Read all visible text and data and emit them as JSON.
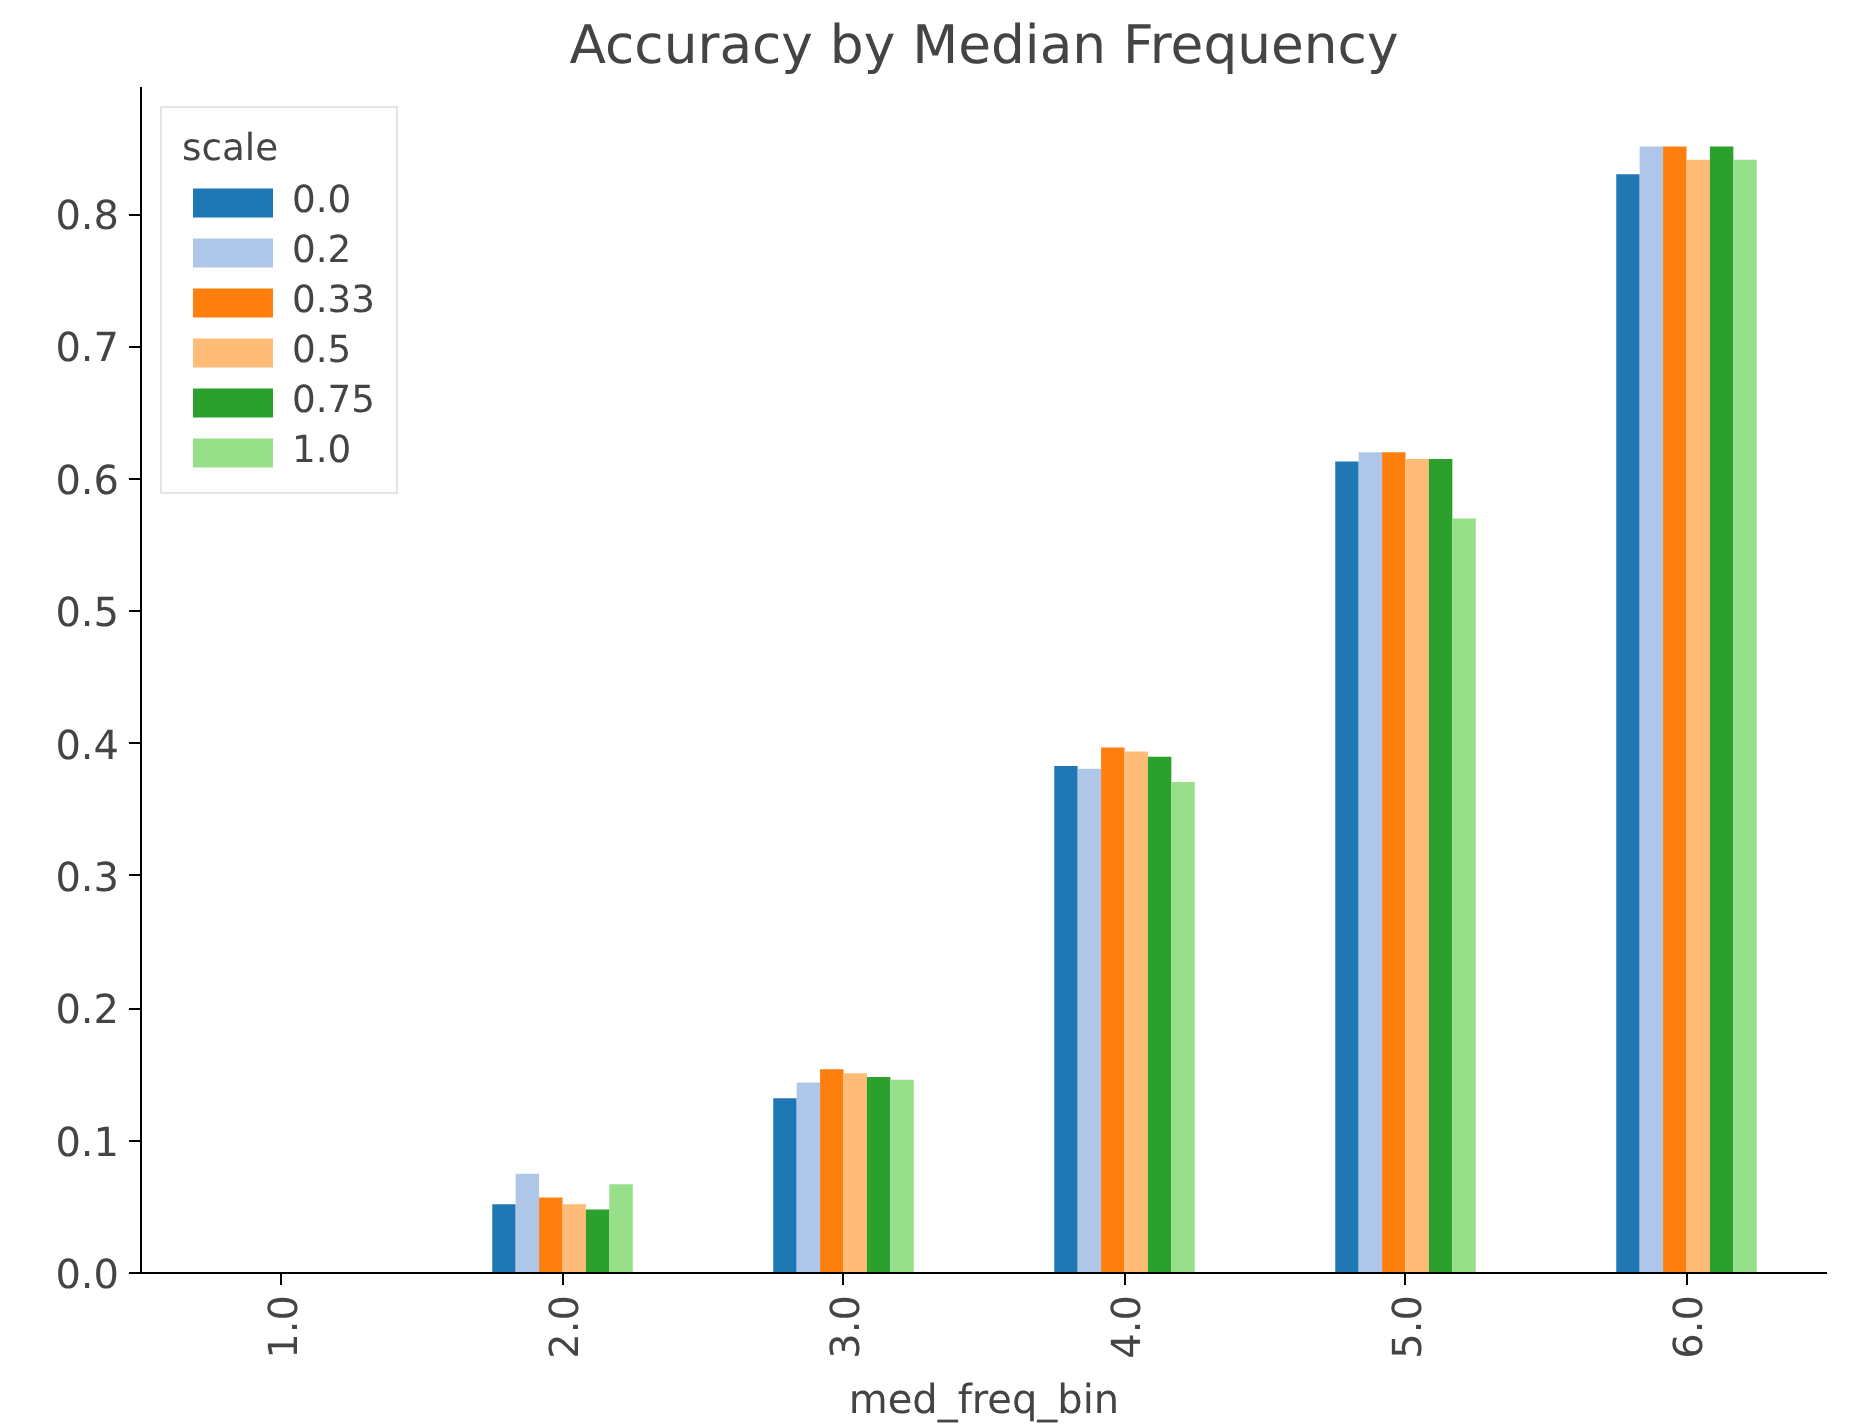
{
  "chart_data": {
    "type": "bar",
    "title": "Accuracy by Median Frequency",
    "xlabel": "med_freq_bin",
    "legend_title": "scale",
    "categories": [
      "1.0",
      "2.0",
      "3.0",
      "4.0",
      "5.0",
      "6.0"
    ],
    "series": [
      {
        "name": "0.0",
        "color": "#1f77b4",
        "values": [
          0,
          0.052,
          0.132,
          0.383,
          0.613,
          0.83
        ]
      },
      {
        "name": "0.2",
        "color": "#aec7e8",
        "values": [
          0,
          0.075,
          0.144,
          0.381,
          0.62,
          0.851
        ]
      },
      {
        "name": "0.33",
        "color": "#ff7f0e",
        "values": [
          0,
          0.057,
          0.154,
          0.397,
          0.62,
          0.851
        ]
      },
      {
        "name": "0.5",
        "color": "#ffbb78",
        "values": [
          0,
          0.052,
          0.151,
          0.394,
          0.615,
          0.841
        ]
      },
      {
        "name": "0.75",
        "color": "#2ca02c",
        "values": [
          0,
          0.048,
          0.148,
          0.39,
          0.615,
          0.851
        ]
      },
      {
        "name": "1.0",
        "color": "#98df8a",
        "values": [
          0,
          0.067,
          0.146,
          0.371,
          0.57,
          0.841
        ]
      }
    ],
    "ylim": [
      0,
      0.896
    ],
    "yticks": [
      {
        "value": 0,
        "label": "0.0"
      },
      0.1,
      0.2,
      0.3,
      0.4,
      0.5,
      0.6,
      0.7,
      0.8
    ],
    "grid": false,
    "legend": "top left"
  }
}
